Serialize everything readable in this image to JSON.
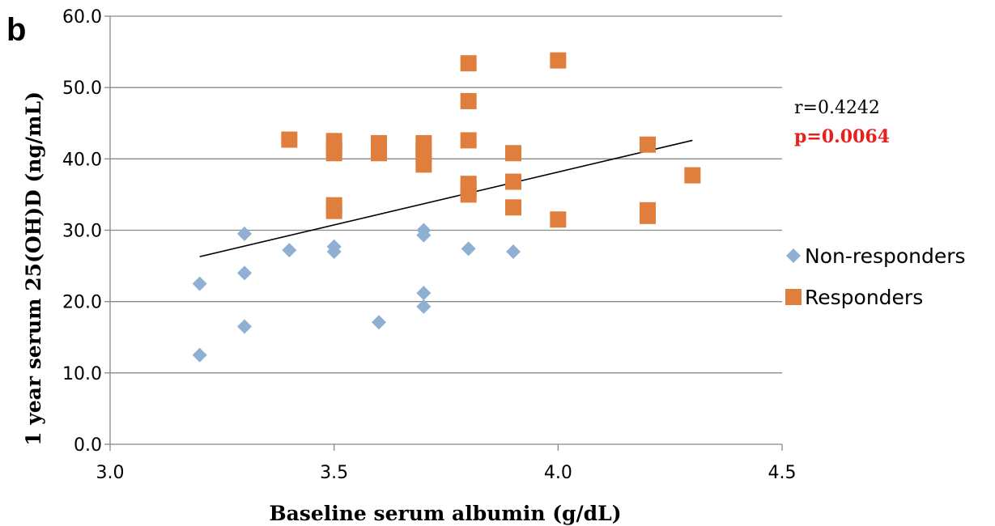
{
  "panel_letter": "b",
  "annotation": {
    "r_text": "r=0.4242",
    "p_text": "p=0.0064"
  },
  "colors": {
    "non_responders": "#8fb0d2",
    "responders": "#e07e3e",
    "grid": "#888888",
    "trendline": "#000000",
    "p_text": "#e8201c"
  },
  "chart_data": {
    "type": "scatter",
    "title": "",
    "xlabel": "Baseline serum albumin (g/dL)",
    "ylabel": "1 year serum 25(OH)D (ng/mL)",
    "xlim": [
      3.0,
      4.5
    ],
    "ylim": [
      0.0,
      60.0
    ],
    "x_ticks": [
      "3.0",
      "3.5",
      "4.0",
      "4.5"
    ],
    "y_ticks": [
      "0.0",
      "10.0",
      "20.0",
      "30.0",
      "40.0",
      "50.0",
      "60.0"
    ],
    "grid": "horizontal",
    "legend": "right",
    "series": [
      {
        "name": "Non-responders",
        "marker": "diamond",
        "points": [
          [
            3.2,
            22.5
          ],
          [
            3.2,
            12.5
          ],
          [
            3.3,
            29.5
          ],
          [
            3.3,
            24.0
          ],
          [
            3.3,
            16.5
          ],
          [
            3.4,
            27.2
          ],
          [
            3.5,
            27.7
          ],
          [
            3.5,
            27.0
          ],
          [
            3.6,
            17.1
          ],
          [
            3.7,
            30.0
          ],
          [
            3.7,
            29.3
          ],
          [
            3.7,
            21.2
          ],
          [
            3.7,
            19.3
          ],
          [
            3.8,
            27.4
          ],
          [
            3.9,
            27.0
          ]
        ]
      },
      {
        "name": "Responders",
        "marker": "square",
        "points": [
          [
            3.4,
            42.7
          ],
          [
            3.5,
            42.5
          ],
          [
            3.5,
            41.5
          ],
          [
            3.5,
            40.8
          ],
          [
            3.5,
            33.5
          ],
          [
            3.5,
            32.7
          ],
          [
            3.6,
            42.2
          ],
          [
            3.6,
            41.5
          ],
          [
            3.6,
            40.8
          ],
          [
            3.7,
            42.2
          ],
          [
            3.7,
            41.4
          ],
          [
            3.7,
            40.5
          ],
          [
            3.7,
            39.2
          ],
          [
            3.8,
            53.4
          ],
          [
            3.8,
            48.1
          ],
          [
            3.8,
            42.6
          ],
          [
            3.8,
            36.5
          ],
          [
            3.8,
            35.8
          ],
          [
            3.8,
            35.0
          ],
          [
            3.9,
            40.8
          ],
          [
            3.9,
            36.8
          ],
          [
            3.9,
            33.2
          ],
          [
            4.0,
            53.8
          ],
          [
            4.0,
            31.5
          ],
          [
            4.2,
            42.0
          ],
          [
            4.2,
            32.8
          ],
          [
            4.2,
            32.0
          ],
          [
            4.3,
            37.7
          ]
        ]
      }
    ],
    "trendline": {
      "x": [
        3.2,
        4.3
      ],
      "y": [
        26.3,
        42.6
      ]
    }
  }
}
